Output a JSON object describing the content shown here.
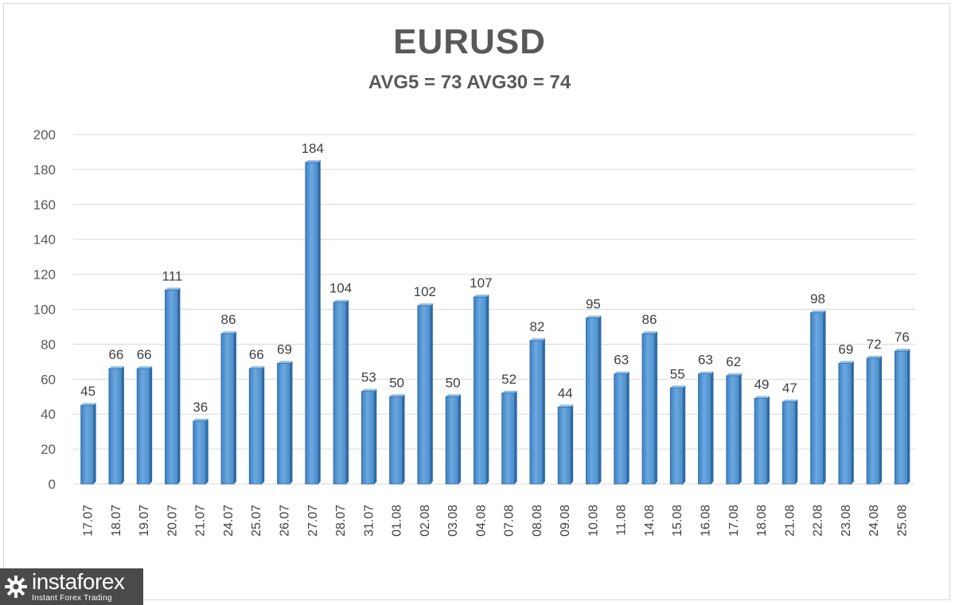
{
  "chart_data": {
    "type": "bar",
    "title": "EURUSD",
    "subtitle": "AVG5 = 73 AVG30 = 74",
    "categories": [
      "17.07",
      "18.07",
      "19.07",
      "20.07",
      "21.07",
      "24.07",
      "25.07",
      "26.07",
      "27.07",
      "28.07",
      "31.07",
      "01.08",
      "02.08",
      "03.08",
      "04.08",
      "07.08",
      "08.08",
      "09.08",
      "10.08",
      "11.08",
      "14.08",
      "15.08",
      "16.08",
      "17.08",
      "18.08",
      "21.08",
      "22.08",
      "23.08",
      "24.08",
      "25.08"
    ],
    "values": [
      45,
      66,
      66,
      111,
      36,
      86,
      66,
      69,
      184,
      104,
      53,
      50,
      102,
      50,
      107,
      52,
      82,
      44,
      95,
      63,
      86,
      55,
      63,
      62,
      49,
      47,
      98,
      69,
      72,
      76
    ],
    "ylim": [
      0,
      200
    ],
    "yticks": [
      0,
      20,
      40,
      60,
      80,
      100,
      120,
      140,
      160,
      180,
      200
    ],
    "xlabel": "",
    "ylabel": "",
    "grid": true,
    "legend": "none",
    "bar_color": "#5b9bd5",
    "bar_color_dark": "#2e6da4",
    "data_labels": true
  },
  "logo": {
    "name": "instaforex",
    "tagline": "Instant Forex Trading",
    "icon": "gear-icon"
  }
}
